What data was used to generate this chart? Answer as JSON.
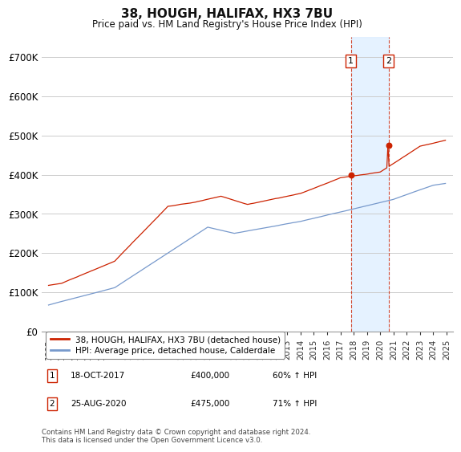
{
  "title": "38, HOUGH, HALIFAX, HX3 7BU",
  "subtitle": "Price paid vs. HM Land Registry's House Price Index (HPI)",
  "ylim": [
    0,
    750000
  ],
  "yticks": [
    0,
    100000,
    200000,
    300000,
    400000,
    500000,
    600000,
    700000
  ],
  "ytick_labels": [
    "£0",
    "£100K",
    "£200K",
    "£300K",
    "£400K",
    "£500K",
    "£600K",
    "£700K"
  ],
  "hpi_color": "#7799cc",
  "price_color": "#cc2200",
  "sale1_date": "18-OCT-2017",
  "sale1_price": 400000,
  "sale1_pct": "60% ↑ HPI",
  "sale2_date": "25-AUG-2020",
  "sale2_price": 475000,
  "sale2_pct": "71% ↑ HPI",
  "legend_line1": "38, HOUGH, HALIFAX, HX3 7BU (detached house)",
  "legend_line2": "HPI: Average price, detached house, Calderdale",
  "footer": "Contains HM Land Registry data © Crown copyright and database right 2024.\nThis data is licensed under the Open Government Licence v3.0.",
  "background_color": "#ffffff",
  "grid_color": "#cccccc",
  "shade_color": "#ddeeff"
}
